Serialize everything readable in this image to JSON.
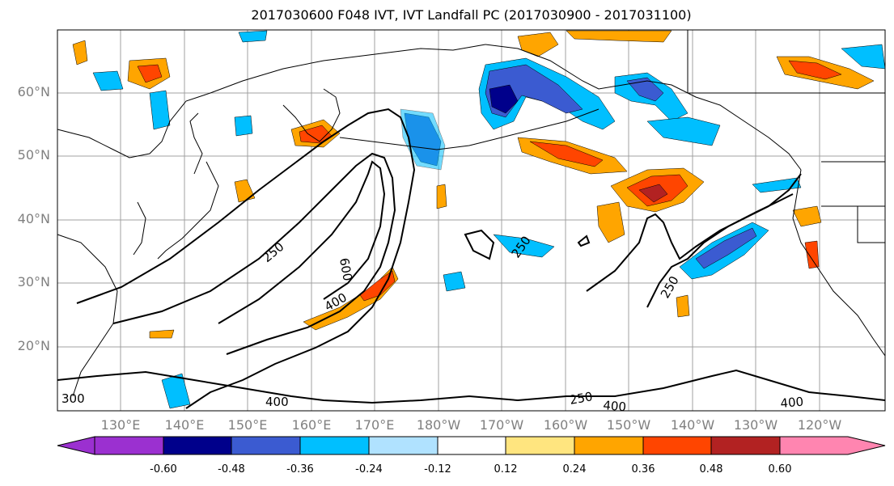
{
  "title": "2017030600 F048 IVT, IVT Landfall PC (2017030900 - 2017031100)",
  "lat_labels": [
    "60°N",
    "50°N",
    "40°N",
    "30°N",
    "20°N"
  ],
  "lon_labels": [
    "130°E",
    "140°E",
    "150°E",
    "160°E",
    "170°E",
    "180°W",
    "170°W",
    "160°W",
    "150°W",
    "140°W",
    "130°W",
    "120°W"
  ],
  "contour_labels": [
    "250",
    "600",
    "400",
    "250",
    "250",
    "400",
    "250",
    "400",
    "400",
    "300"
  ],
  "colorbar": {
    "tick_labels": [
      "-0.60",
      "-0.48",
      "-0.36",
      "-0.24",
      "-0.12",
      "0.12",
      "0.24",
      "0.36",
      "0.48",
      "0.60"
    ],
    "colors": [
      "#9b30d0",
      "#00008b",
      "#3b5bd1",
      "#00bfff",
      "#b0e2ff",
      "#ffffff",
      "#ffe57f",
      "#ffa500",
      "#ff4500",
      "#b22222",
      "#ff85b0"
    ]
  },
  "shading_colors": {
    "neg_1": "#b0e2ff",
    "neg_2": "#00bfff",
    "neg_3": "#3b5bd1",
    "neg_4": "#00008b",
    "pos_1": "#ffe57f",
    "pos_2": "#ffa500",
    "pos_3": "#ff4500",
    "pos_4": "#b22222"
  }
}
